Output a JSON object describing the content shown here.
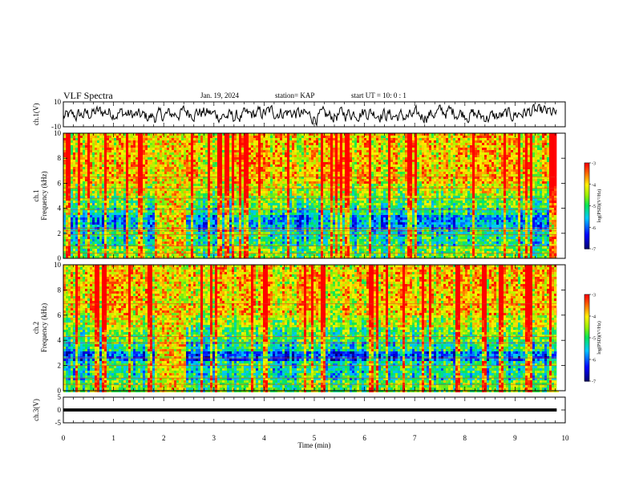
{
  "header": {
    "title": "VLF Spectra",
    "date": "Jan. 19, 2024",
    "station": "station= KAP",
    "start": "start  UT =   10: 0  : 1"
  },
  "chart_data": [
    {
      "type": "line",
      "panel": "ch1-waveform",
      "ylabel": "ch.1(V)",
      "ylim": [
        -10,
        10
      ],
      "yticks": [
        "10",
        "-10"
      ],
      "xlim": [
        0,
        10
      ],
      "x_end": 9.83,
      "description_series": "waveform"
    },
    {
      "type": "heatmap",
      "panel": "ch1-spectrogram",
      "ylabel": "ch.1 Frequency (kHz)",
      "ylabel_top": "ch.1",
      "ylabel_bottom": "Frequency (kHz)",
      "ylim": [
        0,
        10
      ],
      "yticks": [
        "0",
        "2",
        "4",
        "6",
        "8",
        "10"
      ],
      "xlim": [
        0,
        10
      ],
      "x_end": 9.83,
      "burst_interval_min": [
        1.8,
        2.4
      ],
      "colorbar": {
        "label": "log(PSD)(V²/Hz)",
        "range": [
          -7,
          -3
        ],
        "ticks": [
          "-3",
          "-4",
          "-5",
          "-6",
          "-7"
        ]
      }
    },
    {
      "type": "heatmap",
      "panel": "ch2-spectrogram",
      "ylabel": "ch.2 Frequency (kHz)",
      "ylabel_top": "ch.2",
      "ylabel_bottom": "Frequency (kHz)",
      "ylim": [
        0,
        10
      ],
      "yticks": [
        "0",
        "2",
        "4",
        "6",
        "8",
        "10"
      ],
      "xlim": [
        0,
        10
      ],
      "x_end": 9.83,
      "burst_interval_min": [
        1.8,
        2.4
      ],
      "colorbar": {
        "label": "log(PSD)(V²/Hz)",
        "range": [
          -7,
          -3
        ],
        "ticks": [
          "-3",
          "-4",
          "-5",
          "-6",
          "-7"
        ]
      }
    },
    {
      "type": "line",
      "panel": "ch3-waveform",
      "ylabel": "ch.3(V)",
      "ylim": [
        -5,
        5
      ],
      "yticks": [
        "5",
        "0",
        "-5"
      ],
      "xlim": [
        0,
        10
      ],
      "x_end": 9.83,
      "xlabel": "Time (min)",
      "xticks": [
        "0",
        "1",
        "2",
        "3",
        "4",
        "5",
        "6",
        "7",
        "8",
        "9",
        "10"
      ]
    }
  ]
}
